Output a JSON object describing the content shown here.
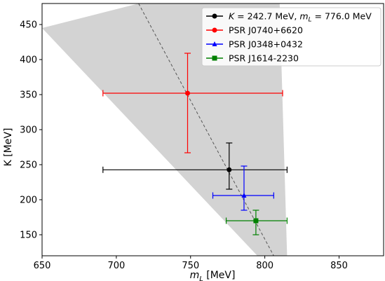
{
  "chart_data": {
    "type": "scatter",
    "xlabel_main": "m",
    "xlabel_sub": "L",
    "xlabel_unit": " [MeV]",
    "ylabel": "K [MeV]",
    "xlim": [
      650,
      880
    ],
    "ylim": [
      120,
      480
    ],
    "x_ticks": [
      650,
      700,
      750,
      800,
      850
    ],
    "y_ticks": [
      150,
      200,
      250,
      300,
      350,
      400,
      450
    ],
    "grid": false,
    "legend_position": "top-right",
    "shaded_region": {
      "color": "#d3d3d3",
      "polygon": [
        [
          650,
          445
        ],
        [
          715,
          480
        ],
        [
          810,
          480
        ],
        [
          815,
          120
        ],
        [
          795,
          120
        ]
      ]
    },
    "dashed_line": {
      "color": "#555555",
      "points": [
        [
          715,
          480
        ],
        [
          806,
          120
        ]
      ]
    },
    "series": [
      {
        "legend_label": "K = 242.7 MeV, m_L = 776.0 MeV",
        "color": "#000000",
        "marker": "circle",
        "x": 776.0,
        "y": 242.7,
        "x_err": [
          691,
          815
        ],
        "y_err": [
          215,
          281
        ]
      },
      {
        "name": "PSR J0740+6620",
        "color": "#ff0000",
        "marker": "circle",
        "x": 748,
        "y": 352,
        "x_err": [
          691,
          812
        ],
        "y_err": [
          267,
          409
        ]
      },
      {
        "name": "PSR J0348+0432",
        "color": "#0000ff",
        "marker": "triangle",
        "x": 786,
        "y": 206,
        "x_err": [
          765,
          806
        ],
        "y_err": [
          185,
          248
        ]
      },
      {
        "name": "PSR J1614-2230",
        "color": "#008000",
        "marker": "square",
        "x": 794,
        "y": 170,
        "x_err": [
          774,
          815
        ],
        "y_err": [
          150,
          185
        ]
      }
    ],
    "legend_first": {
      "k_sym": "K",
      "k_rest": " = 242.7 MeV, ",
      "m_sym": "m",
      "m_sub": "L",
      "m_rest": " = 776.0 MeV"
    }
  }
}
